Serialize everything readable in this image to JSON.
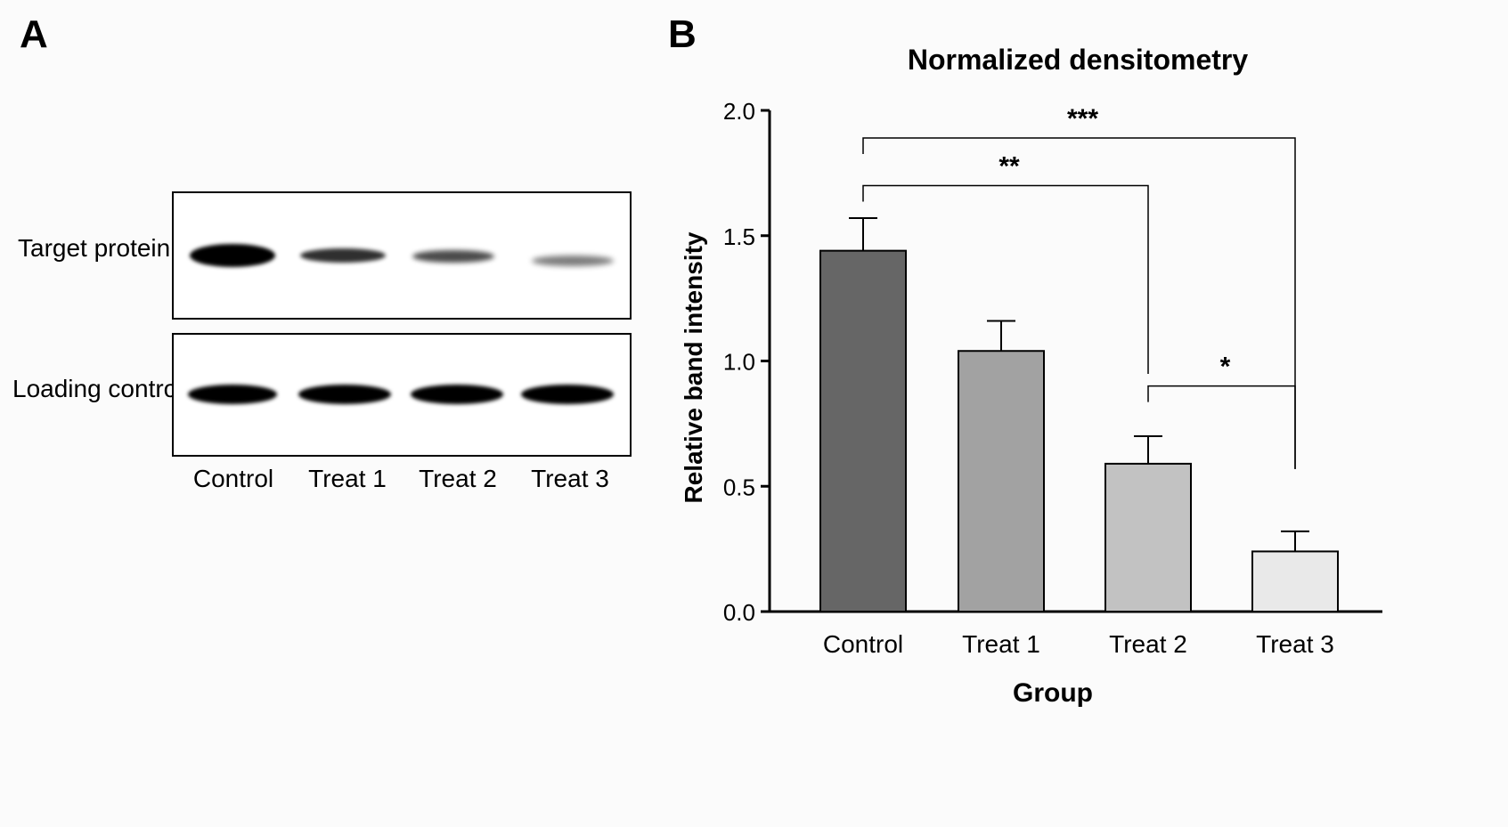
{
  "panel_a": {
    "letter": "A",
    "rows": [
      {
        "label": "Target protein",
        "bands": [
          {
            "lane": "Control",
            "intensity": 1.0
          },
          {
            "lane": "Treat 1",
            "intensity": 0.75
          },
          {
            "lane": "Treat 2",
            "intensity": 0.6
          },
          {
            "lane": "Treat 3",
            "intensity": 0.35
          }
        ]
      },
      {
        "label": "Loading control",
        "bands": [
          {
            "lane": "Control",
            "intensity": 1.0
          },
          {
            "lane": "Treat 1",
            "intensity": 1.0
          },
          {
            "lane": "Treat 2",
            "intensity": 1.0
          },
          {
            "lane": "Treat 3",
            "intensity": 1.0
          }
        ]
      }
    ],
    "lanes": [
      "Control",
      "Treat 1",
      "Treat 2",
      "Treat 3"
    ]
  },
  "panel_b": {
    "letter": "B"
  },
  "chart_data": {
    "type": "bar",
    "title": "Normalized densitometry",
    "xlabel": "Group",
    "ylabel": "Relative band intensity",
    "categories": [
      "Control",
      "Treat 1",
      "Treat 2",
      "Treat 3"
    ],
    "values": [
      1.44,
      1.04,
      0.59,
      0.24
    ],
    "errors": [
      0.13,
      0.12,
      0.11,
      0.08
    ],
    "bar_colors": [
      "#666666",
      "#a2a2a2",
      "#c2c2c2",
      "#e9e9e9"
    ],
    "ylim": [
      0,
      2.0
    ],
    "yticks": [
      "0.0",
      "0.5",
      "1.0",
      "1.5",
      "2.0"
    ],
    "significance": [
      {
        "from": 0,
        "to": 3,
        "label": "***",
        "level": 1.89
      },
      {
        "from": 0,
        "to": 2,
        "label": "**",
        "level": 1.7
      },
      {
        "from": 2,
        "to": 3,
        "label": "*",
        "level": 0.9
      }
    ]
  }
}
